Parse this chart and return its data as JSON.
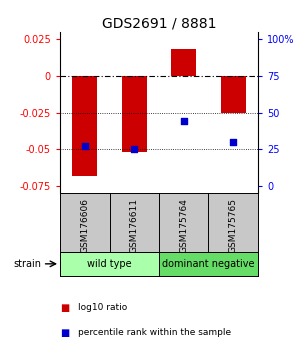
{
  "title": "GDS2691 / 8881",
  "samples": [
    "GSM176606",
    "GSM176611",
    "GSM175764",
    "GSM175765"
  ],
  "bar_values": [
    -0.068,
    -0.052,
    0.018,
    -0.025
  ],
  "percentile_values": [
    0.27,
    0.25,
    0.44,
    0.3
  ],
  "bar_color": "#cc0000",
  "point_color": "#0000cc",
  "ylim": [
    -0.08,
    0.03
  ],
  "yticks_left": [
    0.025,
    0,
    -0.025,
    -0.05,
    -0.075
  ],
  "yticks_right_labels": [
    "100%",
    "75",
    "50",
    "25",
    "0"
  ],
  "dotted_lines": [
    -0.025,
    -0.05
  ],
  "groups": [
    {
      "label": "wild type",
      "indices": [
        0,
        1
      ],
      "color": "#aaffaa"
    },
    {
      "label": "dominant negative",
      "indices": [
        2,
        3
      ],
      "color": "#66dd66"
    }
  ],
  "strain_label": "strain",
  "legend_bar_label": "log10 ratio",
  "legend_point_label": "percentile rank within the sample",
  "sample_bg_color": "#c8c8c8",
  "bar_width": 0.5,
  "title_fontsize": 10,
  "tick_fontsize": 7,
  "label_fontsize": 7,
  "group_fontsize": 7
}
